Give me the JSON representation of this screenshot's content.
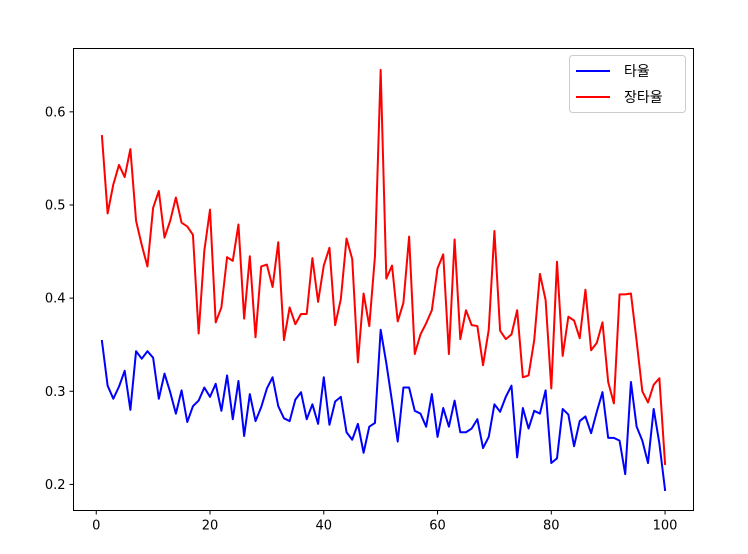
{
  "chart_data": {
    "type": "line",
    "title": "",
    "xlabel": "",
    "ylabel": "",
    "xlim": [
      -4,
      105
    ],
    "ylim": [
      0.172,
      0.668
    ],
    "x_ticks": [
      0,
      20,
      40,
      60,
      80,
      100
    ],
    "y_ticks": [
      0.2,
      0.3,
      0.4,
      0.5,
      0.6
    ],
    "x_tick_labels": [
      "0",
      "20",
      "40",
      "60",
      "80",
      "100"
    ],
    "y_tick_labels": [
      "0.2",
      "0.3",
      "0.4",
      "0.5",
      "0.6"
    ],
    "grid": false,
    "legend_position": "top-right",
    "x": [
      1,
      2,
      3,
      4,
      5,
      6,
      7,
      8,
      9,
      10,
      11,
      12,
      13,
      14,
      15,
      16,
      17,
      18,
      19,
      20,
      21,
      22,
      23,
      24,
      25,
      26,
      27,
      28,
      29,
      30,
      31,
      32,
      33,
      34,
      35,
      36,
      37,
      38,
      39,
      40,
      41,
      42,
      43,
      44,
      45,
      46,
      47,
      48,
      49,
      50,
      51,
      52,
      53,
      54,
      55,
      56,
      57,
      58,
      59,
      60,
      61,
      62,
      63,
      64,
      65,
      66,
      67,
      68,
      69,
      70,
      71,
      72,
      73,
      74,
      75,
      76,
      77,
      78,
      79,
      80,
      81,
      82,
      83,
      84,
      85,
      86,
      87,
      88,
      89,
      90,
      91,
      92,
      93,
      94,
      95,
      96,
      97,
      98,
      99,
      100
    ],
    "series": [
      {
        "name": "타율",
        "color": "#0000ff",
        "values": [
          0.354,
          0.306,
          0.292,
          0.305,
          0.322,
          0.28,
          0.343,
          0.335,
          0.343,
          0.336,
          0.292,
          0.319,
          0.299,
          0.276,
          0.301,
          0.267,
          0.284,
          0.29,
          0.304,
          0.294,
          0.308,
          0.279,
          0.317,
          0.27,
          0.311,
          0.252,
          0.297,
          0.268,
          0.283,
          0.303,
          0.315,
          0.284,
          0.271,
          0.268,
          0.291,
          0.299,
          0.27,
          0.286,
          0.265,
          0.315,
          0.264,
          0.289,
          0.294,
          0.256,
          0.248,
          0.265,
          0.234,
          0.262,
          0.266,
          0.366,
          0.33,
          0.289,
          0.246,
          0.304,
          0.304,
          0.279,
          0.276,
          0.262,
          0.297,
          0.251,
          0.282,
          0.262,
          0.29,
          0.256,
          0.256,
          0.26,
          0.27,
          0.239,
          0.251,
          0.286,
          0.278,
          0.294,
          0.306,
          0.229,
          0.282,
          0.26,
          0.279,
          0.276,
          0.301,
          0.223,
          0.228,
          0.281,
          0.275,
          0.241,
          0.268,
          0.273,
          0.255,
          0.278,
          0.299,
          0.25,
          0.25,
          0.247,
          0.211,
          0.31,
          0.262,
          0.247,
          0.223,
          0.281,
          0.244,
          0.194
        ]
      },
      {
        "name": "장타율",
        "color": "#ff0000",
        "values": [
          0.574,
          0.491,
          0.522,
          0.543,
          0.53,
          0.56,
          0.483,
          0.457,
          0.434,
          0.497,
          0.515,
          0.465,
          0.483,
          0.508,
          0.481,
          0.477,
          0.468,
          0.362,
          0.451,
          0.495,
          0.374,
          0.39,
          0.444,
          0.44,
          0.479,
          0.378,
          0.445,
          0.358,
          0.434,
          0.436,
          0.412,
          0.46,
          0.355,
          0.39,
          0.372,
          0.383,
          0.383,
          0.443,
          0.396,
          0.435,
          0.454,
          0.371,
          0.399,
          0.464,
          0.442,
          0.331,
          0.405,
          0.37,
          0.445,
          0.645,
          0.421,
          0.435,
          0.375,
          0.395,
          0.466,
          0.34,
          0.361,
          0.373,
          0.387,
          0.432,
          0.447,
          0.34,
          0.463,
          0.356,
          0.387,
          0.371,
          0.37,
          0.328,
          0.366,
          0.472,
          0.365,
          0.356,
          0.361,
          0.387,
          0.315,
          0.317,
          0.355,
          0.426,
          0.398,
          0.303,
          0.439,
          0.338,
          0.38,
          0.376,
          0.357,
          0.409,
          0.344,
          0.352,
          0.374,
          0.31,
          0.287,
          0.404,
          0.404,
          0.405,
          0.354,
          0.3,
          0.288,
          0.307,
          0.314,
          0.222
        ]
      }
    ]
  }
}
